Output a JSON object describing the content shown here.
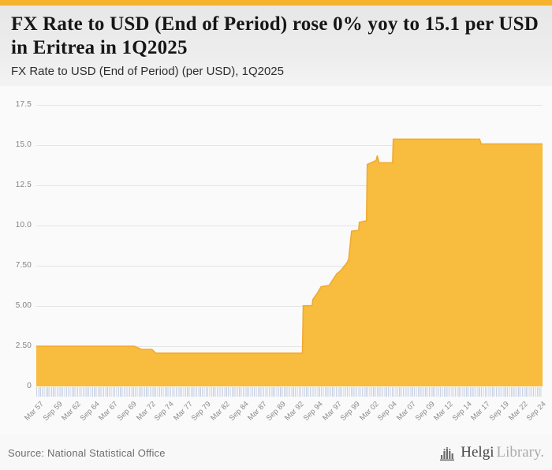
{
  "colors": {
    "accent_bar": "#f5b32b",
    "area_fill": "#f8bc3e",
    "area_stroke": "#f0a92c",
    "gridline": "#e4e4e4",
    "tick_strip": "#c9d3e6"
  },
  "header": {
    "title": "FX Rate to USD (End of Period) rose 0% yoy to 15.1 per USD in Eritrea in 1Q2025",
    "subtitle": "FX Rate to USD (End of Period) (per USD), 1Q2025"
  },
  "footer": {
    "source": "Source: National Statistical Office",
    "logo": {
      "icon": "bar-chart-building-icon",
      "brand_primary": "Helgi",
      "brand_secondary": "Library."
    }
  },
  "chart_data": {
    "type": "area",
    "title": "FX Rate to USD (End of Period) rose 0% yoy to 15.1 per USD in Eritrea in 1Q2025",
    "subtitle": "FX Rate to USD (End of Period) (per USD), 1Q2025",
    "series_name": "FX Rate to USD (End of Period), per USD",
    "country": "Eritrea",
    "latest": {
      "period": "1Q2025",
      "value": 15.1,
      "yoy_change_pct": 0
    },
    "x_domain": [
      1957.25,
      2025.25
    ],
    "y_domain": [
      0,
      17.5
    ],
    "grid": true,
    "legend": "none",
    "y_ticks": [
      {
        "value": 0,
        "label": "0"
      },
      {
        "value": 2.5,
        "label": "2.50"
      },
      {
        "value": 5,
        "label": "5.00"
      },
      {
        "value": 7.5,
        "label": "7.50"
      },
      {
        "value": 10,
        "label": "10.0"
      },
      {
        "value": 12.5,
        "label": "12.5"
      },
      {
        "value": 15,
        "label": "15.0"
      },
      {
        "value": 17.5,
        "label": "17.5"
      }
    ],
    "x_ticks": [
      {
        "year": 1957.25,
        "label": "Mar 57"
      },
      {
        "year": 1959.75,
        "label": "Sep 59"
      },
      {
        "year": 1962.25,
        "label": "Mar 62"
      },
      {
        "year": 1964.75,
        "label": "Sep 64"
      },
      {
        "year": 1967.25,
        "label": "Mar 67"
      },
      {
        "year": 1969.75,
        "label": "Sep 69"
      },
      {
        "year": 1972.25,
        "label": "Mar 72"
      },
      {
        "year": 1974.75,
        "label": "Sep 74"
      },
      {
        "year": 1977.25,
        "label": "Mar 77"
      },
      {
        "year": 1979.75,
        "label": "Sep 79"
      },
      {
        "year": 1982.25,
        "label": "Mar 82"
      },
      {
        "year": 1984.75,
        "label": "Sep 84"
      },
      {
        "year": 1987.25,
        "label": "Mar 87"
      },
      {
        "year": 1989.75,
        "label": "Sep 89"
      },
      {
        "year": 1992.25,
        "label": "Mar 92"
      },
      {
        "year": 1994.75,
        "label": "Sep 94"
      },
      {
        "year": 1997.25,
        "label": "Mar 97"
      },
      {
        "year": 1999.75,
        "label": "Sep 99"
      },
      {
        "year": 2002.25,
        "label": "Mar 02"
      },
      {
        "year": 2004.75,
        "label": "Sep 04"
      },
      {
        "year": 2007.25,
        "label": "Mar 07"
      },
      {
        "year": 2009.75,
        "label": "Sep 09"
      },
      {
        "year": 2012.25,
        "label": "Mar 12"
      },
      {
        "year": 2014.75,
        "label": "Sep 14"
      },
      {
        "year": 2017.25,
        "label": "Mar 17"
      },
      {
        "year": 2019.75,
        "label": "Sep 19"
      },
      {
        "year": 2022.25,
        "label": "Mar 22"
      },
      {
        "year": 2024.75,
        "label": "Sep 24"
      }
    ],
    "minor_tick_interval_years": 0.25,
    "points": [
      [
        1957.25,
        2.5
      ],
      [
        1970.4,
        2.5
      ],
      [
        1971.4,
        2.3
      ],
      [
        1972.8,
        2.3
      ],
      [
        1973.3,
        2.07
      ],
      [
        1993.0,
        2.07
      ],
      [
        1993.1,
        5.02
      ],
      [
        1994.3,
        5.02
      ],
      [
        1994.4,
        5.4
      ],
      [
        1995.0,
        5.8
      ],
      [
        1995.5,
        6.2
      ],
      [
        1996.6,
        6.28
      ],
      [
        1996.9,
        6.5
      ],
      [
        1997.6,
        7.0
      ],
      [
        1998.15,
        7.2
      ],
      [
        1999.0,
        7.7
      ],
      [
        1999.2,
        7.9
      ],
      [
        1999.6,
        9.65
      ],
      [
        2000.55,
        9.7
      ],
      [
        2000.65,
        10.2
      ],
      [
        2001.6,
        10.3
      ],
      [
        2001.7,
        13.8
      ],
      [
        2002.9,
        14.05
      ],
      [
        2003.05,
        14.35
      ],
      [
        2003.3,
        13.9
      ],
      [
        2005.1,
        13.9
      ],
      [
        2005.2,
        15.375
      ],
      [
        2016.8,
        15.375
      ],
      [
        2017.0,
        15.075
      ],
      [
        2025.25,
        15.075
      ]
    ],
    "colors": {
      "fill": "#f8bc3e",
      "stroke": "#f0a92c"
    }
  }
}
